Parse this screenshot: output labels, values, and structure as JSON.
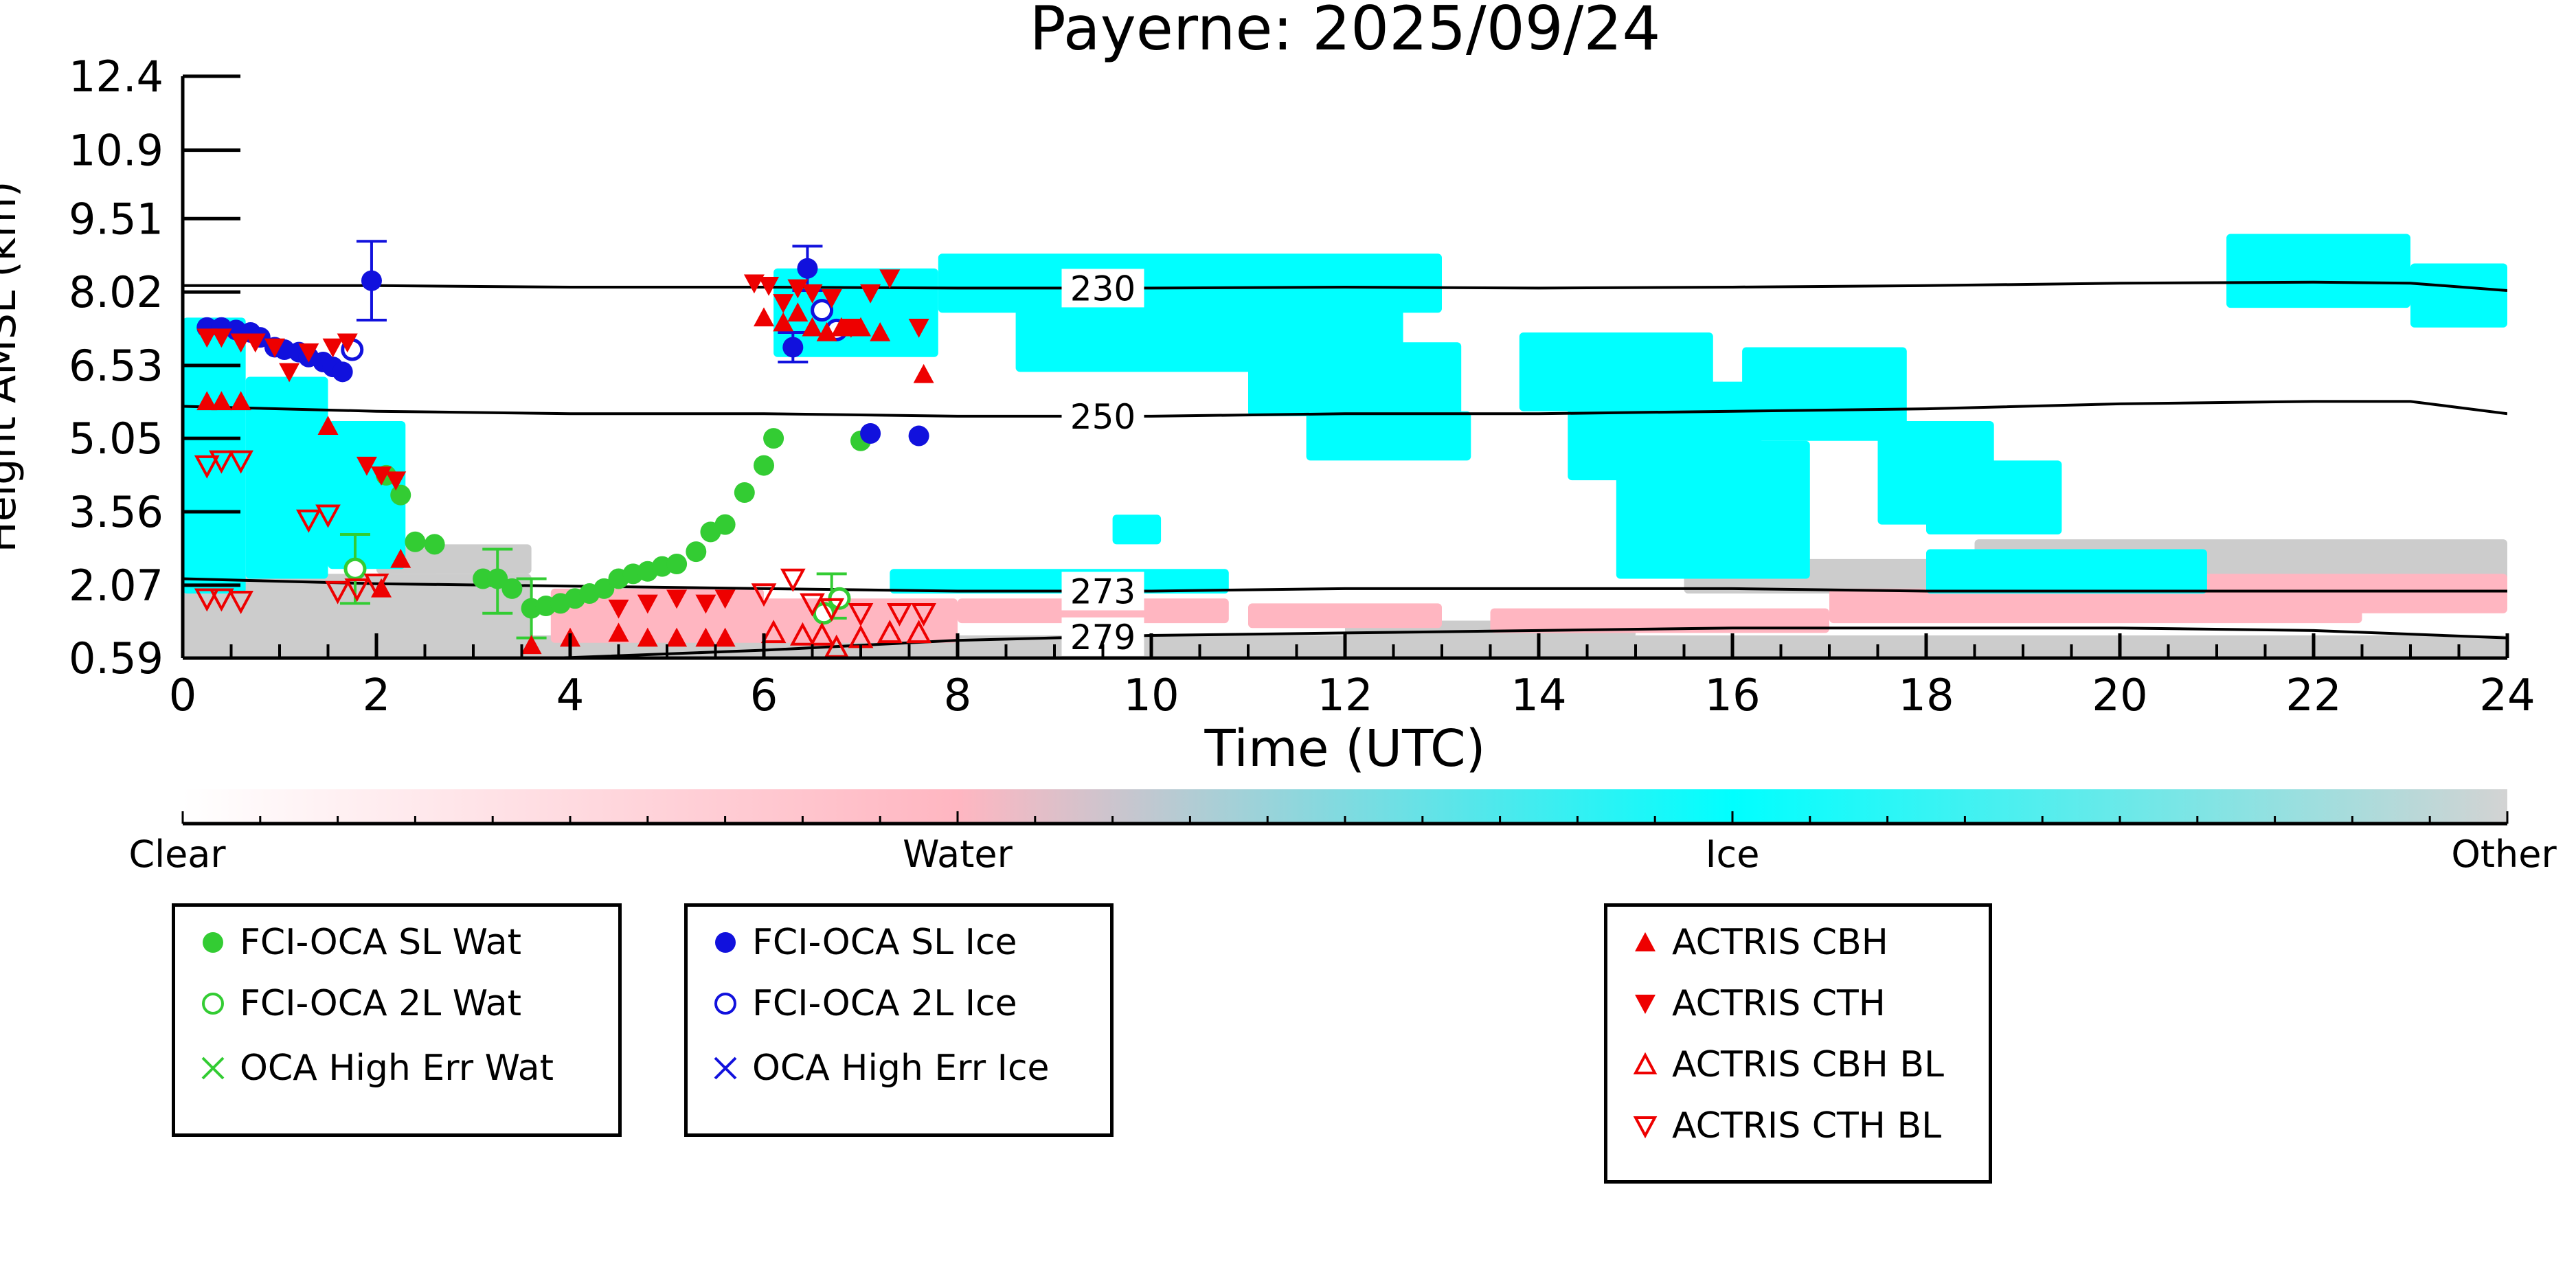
{
  "chart_data": {
    "type": "scatter",
    "title": "Payerne: 2025/09/24",
    "xlabel": "Time (UTC)",
    "ylabel": "Height AMSL (km)",
    "xlim": [
      0,
      24
    ],
    "ylim": [
      0.59,
      12.4
    ],
    "x_ticks": [
      "0",
      "2",
      "4",
      "6",
      "8",
      "10",
      "12",
      "14",
      "16",
      "18",
      "20",
      "22",
      "24"
    ],
    "y_ticks": [
      "12.4",
      "10.9",
      "9.51",
      "8.02",
      "6.53",
      "5.05",
      "3.56",
      "2.07",
      "0.59"
    ],
    "background": "cloud classification image (Clear / Water / Ice / Other)",
    "contours": [
      {
        "label": "230",
        "x": [
          0,
          2,
          4,
          6,
          8,
          10,
          12,
          14,
          16,
          18,
          20,
          22,
          23,
          24
        ],
        "y": [
          8.15,
          8.15,
          8.12,
          8.12,
          8.1,
          8.1,
          8.12,
          8.1,
          8.12,
          8.15,
          8.2,
          8.22,
          8.2,
          8.05
        ]
      },
      {
        "label": "250",
        "x": [
          0,
          2,
          4,
          6,
          8,
          10,
          12,
          14,
          16,
          18,
          20,
          22,
          23,
          24
        ],
        "y": [
          5.7,
          5.6,
          5.55,
          5.55,
          5.5,
          5.5,
          5.55,
          5.55,
          5.6,
          5.65,
          5.75,
          5.8,
          5.8,
          5.55
        ]
      },
      {
        "label": "273",
        "x": [
          0,
          2,
          4,
          6,
          8,
          10,
          12,
          14,
          16,
          18,
          20,
          22,
          24
        ],
        "y": [
          2.2,
          2.1,
          2.05,
          2.0,
          1.95,
          1.95,
          2.0,
          2.0,
          2.0,
          1.95,
          1.95,
          1.95,
          1.95
        ]
      },
      {
        "label": "279",
        "x": [
          0,
          2,
          4,
          6,
          8,
          10,
          12,
          14,
          16,
          18,
          20,
          22,
          24
        ],
        "y": [
          0.4,
          0.5,
          0.6,
          0.75,
          0.95,
          1.05,
          1.1,
          1.15,
          1.2,
          1.2,
          1.2,
          1.15,
          1.0
        ]
      }
    ],
    "series": [
      {
        "name": "FCI-OCA SL Wat",
        "marker": "filled-circle",
        "color": "#33cc33",
        "x": [
          2.1,
          2.25,
          2.4,
          2.6,
          3.1,
          3.25,
          3.4,
          3.6,
          3.75,
          3.9,
          4.05,
          4.2,
          4.35,
          4.5,
          4.65,
          4.8,
          4.95,
          5.1,
          5.3,
          5.45,
          5.6,
          5.8,
          6.0,
          6.1,
          7.0
        ],
        "y": [
          4.3,
          3.9,
          2.95,
          2.9,
          2.2,
          2.2,
          2.0,
          1.6,
          1.65,
          1.7,
          1.8,
          1.9,
          2.0,
          2.2,
          2.3,
          2.35,
          2.45,
          2.5,
          2.75,
          3.15,
          3.3,
          3.95,
          4.5,
          5.05,
          5.0
        ]
      },
      {
        "name": "FCI-OCA 2L Wat",
        "marker": "open-circle",
        "color": "#33cc33",
        "x": [
          1.78,
          6.62,
          6.78
        ],
        "y": [
          2.4,
          1.5,
          1.8
        ]
      },
      {
        "name": "OCA High Err Wat",
        "marker": "x",
        "color": "#33cc33",
        "x": [],
        "y": []
      },
      {
        "name": "FCI-OCA SL Ice",
        "marker": "filled-circle",
        "color": "#1111dd",
        "x": [
          0.25,
          0.4,
          0.55,
          0.7,
          0.8,
          0.95,
          1.05,
          1.2,
          1.3,
          1.45,
          1.55,
          1.65,
          1.95,
          6.3,
          6.45,
          7.1,
          7.6
        ],
        "y": [
          7.3,
          7.3,
          7.25,
          7.2,
          7.1,
          6.9,
          6.85,
          6.8,
          6.7,
          6.6,
          6.5,
          6.4,
          8.25,
          6.9,
          8.5,
          5.15,
          5.1
        ]
      },
      {
        "name": "FCI-OCA 2L Ice",
        "marker": "open-circle",
        "color": "#1111dd",
        "x": [
          1.75,
          6.6,
          6.75
        ],
        "y": [
          6.85,
          7.65,
          7.25
        ]
      },
      {
        "name": "OCA High Err Ice",
        "marker": "x",
        "color": "#1111dd",
        "x": [],
        "y": []
      },
      {
        "name": "ACTRIS CBH",
        "marker": "filled-triangle-up",
        "color": "#ee0000",
        "x": [
          0.25,
          0.4,
          0.6,
          1.5,
          2.05,
          2.25,
          3.6,
          4.0,
          4.5,
          4.8,
          5.1,
          5.4,
          5.6,
          6.0,
          6.2,
          6.35,
          6.5,
          6.65,
          6.8,
          7.0,
          7.2,
          7.65
        ],
        "y": [
          5.8,
          5.8,
          5.8,
          5.3,
          2.0,
          2.6,
          0.85,
          1.0,
          1.1,
          1.0,
          1.0,
          1.0,
          1.0,
          7.5,
          7.4,
          7.6,
          7.3,
          7.2,
          7.3,
          7.3,
          7.2,
          6.35
        ]
      },
      {
        "name": "ACTRIS CTH",
        "marker": "filled-triangle-down",
        "color": "#ee0000",
        "x": [
          0.25,
          0.4,
          0.6,
          0.75,
          0.95,
          1.1,
          1.3,
          1.55,
          1.7,
          1.9,
          2.05,
          2.2,
          4.5,
          4.8,
          5.1,
          5.4,
          5.6,
          5.9,
          6.05,
          6.2,
          6.35,
          6.5,
          6.7,
          6.9,
          7.1,
          7.3,
          7.6
        ],
        "y": [
          7.1,
          7.1,
          7.0,
          7.0,
          6.9,
          6.4,
          6.8,
          6.9,
          7.0,
          4.5,
          4.3,
          4.2,
          1.6,
          1.7,
          1.8,
          1.7,
          1.8,
          8.2,
          8.15,
          7.8,
          8.1,
          8.0,
          7.9,
          7.3,
          8.0,
          8.3,
          7.3
        ]
      },
      {
        "name": "ACTRIS CBH BL",
        "marker": "open-triangle-up",
        "color": "#ee0000",
        "x": [
          6.1,
          6.4,
          6.6,
          6.75,
          7.0,
          7.3,
          7.6
        ],
        "y": [
          1.1,
          1.05,
          1.05,
          0.8,
          1.0,
          1.1,
          1.1
        ]
      },
      {
        "name": "ACTRIS CTH BL",
        "marker": "open-triangle-down",
        "color": "#ee0000",
        "x": [
          0.25,
          0.4,
          0.6,
          0.25,
          0.4,
          0.6,
          1.3,
          1.5,
          1.6,
          1.8,
          2.0,
          6.0,
          6.3,
          6.5,
          6.7,
          7.0,
          7.4,
          7.65
        ],
        "y": [
          4.5,
          4.6,
          4.6,
          1.8,
          1.8,
          1.75,
          3.4,
          3.5,
          1.95,
          2.0,
          2.1,
          1.9,
          2.2,
          1.7,
          1.6,
          1.5,
          1.5,
          1.5
        ]
      }
    ],
    "error_bars": [
      {
        "x": 1.95,
        "y": 8.25,
        "ylo": 7.45,
        "yhi": 9.05,
        "color": "#1111dd"
      },
      {
        "x": 6.45,
        "y": 8.5,
        "ylo": 8.05,
        "yhi": 8.95,
        "color": "#1111dd"
      },
      {
        "x": 6.3,
        "y": 6.9,
        "ylo": 6.6,
        "yhi": 7.2,
        "color": "#1111dd"
      },
      {
        "x": 1.78,
        "y": 2.4,
        "ylo": 1.7,
        "yhi": 3.1,
        "color": "#33cc33"
      },
      {
        "x": 3.25,
        "y": 2.2,
        "ylo": 1.5,
        "yhi": 2.8,
        "color": "#33cc33"
      },
      {
        "x": 3.6,
        "y": 1.6,
        "ylo": 1.0,
        "yhi": 2.2,
        "color": "#33cc33"
      },
      {
        "x": 6.7,
        "y": 1.8,
        "ylo": 1.4,
        "yhi": 2.3,
        "color": "#33cc33"
      }
    ],
    "colorbar": {
      "labels": [
        "Clear",
        "Water",
        "Ice",
        "Other"
      ],
      "colors": {
        "clear": "#ffffff",
        "water": "#ffb6c1",
        "ice": "#00ffff",
        "other": "#d3d3d3"
      }
    },
    "cloud_patches": {
      "ice_color": "#00ffff",
      "water_color": "#ffb6c1",
      "other_color": "#cccccc",
      "ice": [
        {
          "x0": 0.0,
          "x1": 0.65,
          "y0": 1.9,
          "y1": 7.5
        },
        {
          "x0": 0.65,
          "x1": 1.5,
          "y0": 2.2,
          "y1": 6.3
        },
        {
          "x0": 1.5,
          "x1": 2.3,
          "y0": 2.4,
          "y1": 5.4
        },
        {
          "x0": 6.1,
          "x1": 7.8,
          "y0": 6.7,
          "y1": 8.5
        },
        {
          "x0": 7.8,
          "x1": 13.0,
          "y0": 7.6,
          "y1": 8.8
        },
        {
          "x0": 8.6,
          "x1": 12.6,
          "y0": 6.4,
          "y1": 7.8
        },
        {
          "x0": 11.0,
          "x1": 13.2,
          "y0": 5.5,
          "y1": 7.0
        },
        {
          "x0": 11.6,
          "x1": 13.3,
          "y0": 4.6,
          "y1": 5.6
        },
        {
          "x0": 13.8,
          "x1": 15.8,
          "y0": 5.6,
          "y1": 7.2
        },
        {
          "x0": 14.3,
          "x1": 16.3,
          "y0": 4.2,
          "y1": 6.2
        },
        {
          "x0": 14.8,
          "x1": 16.8,
          "y0": 2.2,
          "y1": 5.0
        },
        {
          "x0": 16.1,
          "x1": 17.8,
          "y0": 5.0,
          "y1": 6.9
        },
        {
          "x0": 17.5,
          "x1": 18.7,
          "y0": 3.3,
          "y1": 5.4
        },
        {
          "x0": 18.0,
          "x1": 19.4,
          "y0": 3.1,
          "y1": 4.6
        },
        {
          "x0": 21.1,
          "x1": 23.0,
          "y0": 7.7,
          "y1": 9.2
        },
        {
          "x0": 23.0,
          "x1": 24.0,
          "y0": 7.3,
          "y1": 8.6
        },
        {
          "x0": 7.3,
          "x1": 10.8,
          "y0": 1.9,
          "y1": 2.4
        },
        {
          "x0": 18.0,
          "x1": 20.9,
          "y0": 1.9,
          "y1": 2.8
        },
        {
          "x0": 9.6,
          "x1": 10.1,
          "y0": 2.9,
          "y1": 3.5
        }
      ],
      "water": [
        {
          "x0": 3.8,
          "x1": 6.0,
          "y0": 0.9,
          "y1": 2.0
        },
        {
          "x0": 6.0,
          "x1": 8.0,
          "y0": 0.9,
          "y1": 1.8
        },
        {
          "x0": 8.0,
          "x1": 10.8,
          "y0": 1.3,
          "y1": 1.8
        },
        {
          "x0": 11.0,
          "x1": 13.0,
          "y0": 1.2,
          "y1": 1.7
        },
        {
          "x0": 13.5,
          "x1": 17.0,
          "y0": 1.1,
          "y1": 1.6
        },
        {
          "x0": 17.0,
          "x1": 22.5,
          "y0": 1.3,
          "y1": 2.0
        },
        {
          "x0": 20.5,
          "x1": 24.0,
          "y0": 1.5,
          "y1": 2.3
        }
      ],
      "other": [
        {
          "x0": 0.0,
          "x1": 24.0,
          "y0": 0.59,
          "y1": 1.05
        },
        {
          "x0": 0.0,
          "x1": 3.6,
          "y0": 1.0,
          "y1": 2.3
        },
        {
          "x0": 2.0,
          "x1": 3.6,
          "y0": 2.3,
          "y1": 2.9
        },
        {
          "x0": 12.0,
          "x1": 15.0,
          "y0": 1.0,
          "y1": 1.35
        },
        {
          "x0": 18.5,
          "x1": 24.0,
          "y0": 2.0,
          "y1": 3.0
        },
        {
          "x0": 15.5,
          "x1": 18.8,
          "y0": 1.9,
          "y1": 2.6
        }
      ]
    }
  },
  "legends": [
    {
      "items": [
        {
          "label": "FCI-OCA SL Wat",
          "icon": "filled-circle",
          "color": "#33cc33"
        },
        {
          "label": "FCI-OCA 2L Wat",
          "icon": "open-circle",
          "color": "#33cc33"
        },
        {
          "label": "OCA High Err Wat",
          "icon": "x",
          "color": "#33cc33"
        }
      ]
    },
    {
      "items": [
        {
          "label": "FCI-OCA SL Ice",
          "icon": "filled-circle",
          "color": "#1111dd"
        },
        {
          "label": "FCI-OCA 2L Ice",
          "icon": "open-circle",
          "color": "#1111dd"
        },
        {
          "label": "OCA High Err Ice",
          "icon": "x",
          "color": "#1111dd"
        }
      ]
    },
    {
      "items": [
        {
          "label": "ACTRIS CBH",
          "icon": "filled-triangle-up",
          "color": "#ee0000"
        },
        {
          "label": "ACTRIS CTH",
          "icon": "filled-triangle-down",
          "color": "#ee0000"
        },
        {
          "label": "ACTRIS CBH BL",
          "icon": "open-triangle-up",
          "color": "#ee0000"
        },
        {
          "label": "ACTRIS CTH BL",
          "icon": "open-triangle-down",
          "color": "#ee0000"
        }
      ]
    }
  ]
}
